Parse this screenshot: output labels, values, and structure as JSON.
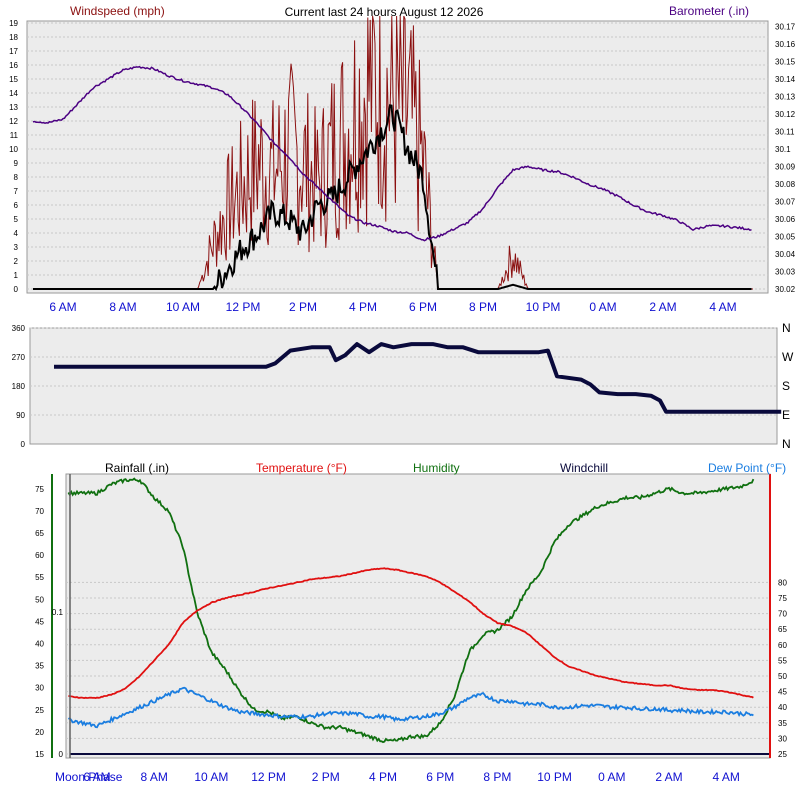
{
  "title": "Current last 24 hours August 12 2026",
  "colors": {
    "panel_bg": "#ececec",
    "grid": "#c8c8c8",
    "wind": "#8b1010",
    "wind_avg": "#000000",
    "barometer": "#4b0082",
    "direction": "#0a0a3c",
    "temperature": "#e01010",
    "humidity": "#107010",
    "dewpoint": "#1a7de0",
    "rainfall": "#0a0a3c",
    "time_axis": "#1010d0"
  },
  "time_labels": [
    "6 AM",
    "8 AM",
    "10 AM",
    "12 PM",
    "2 PM",
    "4 PM",
    "6 PM",
    "8 PM",
    "10 PM",
    "0 AM",
    "2 AM",
    "4 AM"
  ],
  "chart_data": [
    {
      "type": "line",
      "title": "Current last 24 hours August 12 2026",
      "ylabel": "Windspeed (mph)",
      "y2label": "Barometer (.in)",
      "ylim": [
        0,
        19
      ],
      "y2lim": [
        30.02,
        30.17
      ],
      "yticks": [
        "0",
        "1",
        "2",
        "3",
        "4",
        "5",
        "6",
        "7",
        "8",
        "9",
        "10",
        "11",
        "12",
        "13",
        "14",
        "15",
        "16",
        "17",
        "18",
        "19"
      ],
      "y2ticks": [
        "30.02",
        "30.03",
        "30.04",
        "30.05",
        "30.06",
        "30.07",
        "30.08",
        "30.09",
        "30.1",
        "30.11",
        "30.12",
        "30.13",
        "30.14",
        "30.15",
        "30.16",
        "30.17"
      ],
      "x_hours": [
        5.0,
        5.5,
        6.0,
        6.5,
        7.0,
        7.5,
        8.0,
        8.5,
        9.0,
        9.5,
        10.0,
        10.5,
        11.0,
        11.5,
        12.0,
        12.5,
        13.0,
        13.5,
        14.0,
        14.5,
        15.0,
        15.5,
        16.0,
        16.5,
        17.0,
        17.5,
        18.0,
        18.5,
        19.0,
        19.5,
        20.0,
        20.5,
        21.0,
        21.5,
        22.0,
        22.5,
        23.0,
        23.5,
        24.0,
        24.5,
        25.0,
        25.5,
        26.0,
        26.5,
        27.0,
        27.5,
        28.0,
        28.5,
        29.0
      ],
      "series": [
        {
          "name": "Barometer (.in)",
          "axis": "right",
          "values": [
            30.116,
            30.115,
            30.117,
            30.126,
            30.135,
            30.14,
            30.145,
            30.147,
            30.146,
            30.142,
            30.139,
            30.137,
            30.135,
            30.131,
            30.123,
            30.114,
            30.104,
            30.096,
            30.086,
            30.078,
            30.07,
            30.062,
            30.058,
            30.056,
            30.053,
            30.052,
            30.048,
            30.05,
            30.054,
            30.058,
            30.066,
            30.078,
            30.088,
            30.09,
            30.088,
            30.087,
            30.084,
            30.08,
            30.077,
            30.073,
            30.068,
            30.064,
            30.062,
            30.059,
            30.054,
            30.056,
            30.056,
            30.055,
            30.054
          ]
        },
        {
          "name": "Windspeed (mph)",
          "axis": "left",
          "values": [
            0,
            0,
            0,
            0,
            0,
            0,
            0,
            0,
            0,
            0,
            0,
            0,
            4,
            7,
            9,
            11,
            10,
            12,
            11,
            9,
            12,
            14,
            17,
            18,
            16,
            15,
            11,
            0,
            0,
            0,
            0,
            0,
            3,
            0,
            0,
            0,
            0,
            0,
            0,
            0,
            0,
            0,
            0,
            0,
            0,
            0,
            0,
            0,
            0
          ]
        },
        {
          "name": "Windspeed average",
          "axis": "left",
          "values": [
            0,
            0,
            0,
            0,
            0,
            0,
            0,
            0,
            0,
            0,
            0,
            0,
            0,
            1.5,
            3,
            4,
            5.5,
            5,
            4,
            6,
            6.5,
            8,
            9.5,
            11,
            12.5,
            10,
            8,
            0,
            0,
            0,
            0,
            0,
            0.3,
            0,
            0,
            0,
            0,
            0,
            0,
            0,
            0,
            0,
            0,
            0,
            0,
            0,
            0,
            0,
            0
          ]
        }
      ]
    },
    {
      "type": "line",
      "ylabel": "Wind direction",
      "ylim": [
        0,
        360
      ],
      "yticks": [
        "0",
        "90",
        "180",
        "270",
        "360"
      ],
      "y2ticks": [
        "N",
        "E",
        "S",
        "W",
        "N"
      ],
      "x_hours": [
        5.0,
        11.0,
        12.0,
        12.3,
        12.8,
        13.5,
        14.1,
        14.3,
        14.6,
        15.0,
        15.4,
        15.8,
        16.2,
        16.8,
        17.5,
        18.0,
        18.5,
        19.0,
        20.0,
        21.0,
        21.3,
        21.6,
        22.4,
        22.7,
        23.0,
        23.6,
        24.2,
        24.7,
        25.0,
        25.2,
        25.5,
        29.0
      ],
      "series": [
        {
          "name": "Wind direction",
          "values": [
            240,
            240,
            240,
            250,
            290,
            300,
            300,
            260,
            275,
            310,
            285,
            310,
            300,
            310,
            310,
            300,
            300,
            285,
            285,
            285,
            290,
            210,
            200,
            185,
            160,
            155,
            155,
            150,
            135,
            100,
            100,
            100
          ]
        }
      ]
    },
    {
      "type": "line",
      "legend": [
        "Rainfall (.in)",
        "Temperature (°F)",
        "Humidity",
        "Windchill",
        "Dew Point (°F)"
      ],
      "ylim_humidity": [
        15,
        75
      ],
      "ylim_temperature": [
        25,
        80
      ],
      "ylim_rain": [
        0,
        0.15
      ],
      "humidity_ticks": [
        "15",
        "20",
        "25",
        "30",
        "35",
        "40",
        "45",
        "50",
        "55",
        "60",
        "65",
        "70",
        "75"
      ],
      "temperature_ticks": [
        "25",
        "30",
        "35",
        "40",
        "45",
        "50",
        "55",
        "60",
        "65",
        "70",
        "75",
        "80"
      ],
      "rain_ticks": [
        "0",
        "0.1"
      ],
      "moon_label": "Moon Phase",
      "x_hours": [
        5.0,
        5.5,
        6.0,
        6.5,
        7.0,
        7.5,
        8.0,
        8.5,
        9.0,
        9.5,
        10.0,
        10.5,
        11.0,
        11.5,
        12.0,
        12.5,
        13.0,
        13.5,
        14.0,
        14.5,
        15.0,
        15.5,
        16.0,
        16.5,
        17.0,
        17.5,
        18.0,
        18.5,
        19.0,
        19.5,
        20.0,
        20.5,
        21.0,
        21.5,
        22.0,
        22.5,
        23.0,
        23.5,
        24.0,
        24.5,
        25.0,
        25.5,
        26.0,
        26.5,
        27.0,
        27.5,
        28.0,
        28.5,
        29.0
      ],
      "series": [
        {
          "name": "Temperature (°F)",
          "axis": "temperature",
          "values": [
            43.5,
            43,
            43,
            44,
            46,
            50,
            55,
            60,
            67,
            71,
            73.5,
            75,
            76,
            77,
            78.2,
            79,
            80,
            81,
            81.5,
            82,
            83,
            84,
            84.5,
            84,
            83,
            82,
            80,
            77,
            74,
            70,
            67,
            66,
            64,
            60,
            56,
            53,
            51.5,
            50,
            49,
            48,
            47.5,
            47,
            47,
            46,
            45.5,
            45.5,
            45,
            44,
            43
          ]
        },
        {
          "name": "Humidity",
          "axis": "humidity",
          "values": [
            74,
            74,
            74,
            76,
            77,
            77,
            73,
            70,
            62,
            47,
            38,
            34,
            29,
            25,
            24.5,
            23,
            23.5,
            22,
            21,
            21,
            20,
            19,
            18,
            18,
            19,
            19,
            22,
            28,
            38,
            42,
            43,
            46,
            52,
            56,
            63,
            67,
            69,
            71,
            72,
            73,
            73,
            74,
            75,
            74,
            74,
            74.5,
            75,
            75.5,
            77
          ]
        },
        {
          "name": "Dew Point (°F)",
          "axis": "temperature",
          "values": [
            36,
            35,
            34,
            36,
            38,
            40,
            42,
            44,
            46,
            44,
            42,
            40,
            38.5,
            38,
            37.5,
            37,
            37,
            37,
            38,
            38,
            38,
            37,
            37,
            36,
            36.5,
            37,
            38,
            40,
            43,
            44,
            42,
            42,
            41,
            41,
            40,
            40,
            40.5,
            40.5,
            40,
            40,
            39.5,
            39.5,
            39,
            39,
            38.5,
            38.5,
            38.5,
            38,
            37.5
          ]
        },
        {
          "name": "Rainfall (.in)",
          "axis": "rain",
          "values": [
            0,
            0,
            0,
            0,
            0,
            0,
            0,
            0,
            0,
            0,
            0,
            0,
            0,
            0,
            0,
            0,
            0,
            0,
            0,
            0,
            0,
            0,
            0,
            0,
            0,
            0,
            0,
            0,
            0,
            0,
            0,
            0,
            0,
            0,
            0,
            0,
            0,
            0,
            0,
            0,
            0,
            0,
            0,
            0,
            0,
            0,
            0,
            0,
            0
          ]
        }
      ]
    }
  ]
}
